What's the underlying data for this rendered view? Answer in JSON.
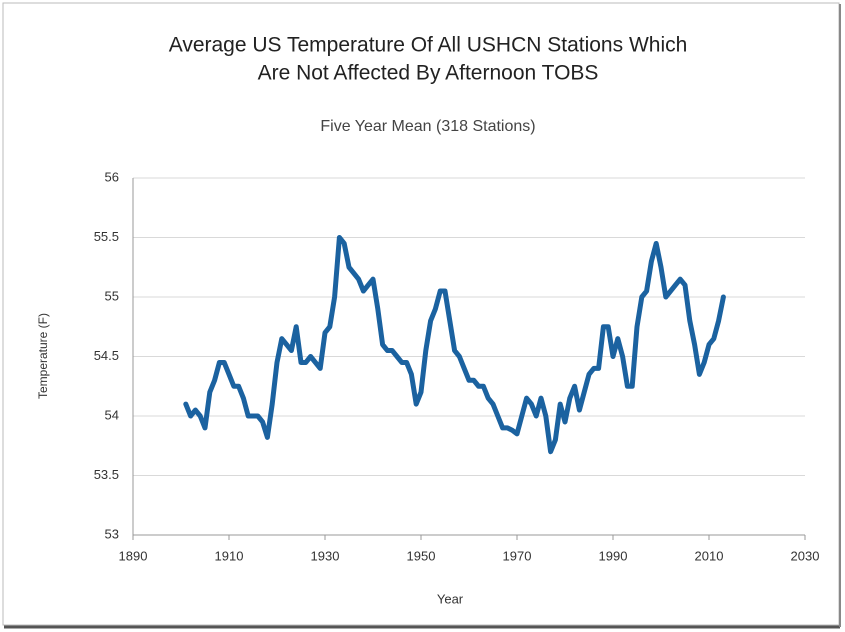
{
  "chart_data": {
    "type": "line",
    "title": [
      "Average US Temperature Of All USHCN Stations Which",
      "Are Not Affected By Afternoon TOBS"
    ],
    "subtitle": "Five Year Mean (318 Stations)",
    "xlabel": "Year",
    "ylabel": "Temperature (F)",
    "x": [
      1901,
      1902,
      1903,
      1904,
      1905,
      1906,
      1907,
      1908,
      1909,
      1910,
      1911,
      1912,
      1913,
      1914,
      1915,
      1916,
      1917,
      1918,
      1919,
      1920,
      1921,
      1922,
      1923,
      1924,
      1925,
      1926,
      1927,
      1928,
      1929,
      1930,
      1931,
      1932,
      1933,
      1934,
      1935,
      1936,
      1937,
      1938,
      1939,
      1940,
      1941,
      1942,
      1943,
      1944,
      1945,
      1946,
      1947,
      1948,
      1949,
      1950,
      1951,
      1952,
      1953,
      1954,
      1955,
      1956,
      1957,
      1958,
      1959,
      1960,
      1961,
      1962,
      1963,
      1964,
      1965,
      1966,
      1967,
      1968,
      1969,
      1970,
      1971,
      1972,
      1973,
      1974,
      1975,
      1976,
      1977,
      1978,
      1979,
      1980,
      1981,
      1982,
      1983,
      1984,
      1985,
      1986,
      1987,
      1988,
      1989,
      1990,
      1991,
      1992,
      1993,
      1994,
      1995,
      1996,
      1997,
      1998,
      1999,
      2000,
      2001,
      2002,
      2003,
      2004,
      2005,
      2006,
      2007,
      2008,
      2009,
      2010,
      2011,
      2012,
      2013
    ],
    "series": [
      {
        "name": "Temperature",
        "color": "#1b62a0",
        "values": [
          54.1,
          54.0,
          54.05,
          54.0,
          53.9,
          54.2,
          54.3,
          54.45,
          54.45,
          54.35,
          54.25,
          54.25,
          54.15,
          54.0,
          54.0,
          54.0,
          53.95,
          53.82,
          54.1,
          54.45,
          54.65,
          54.6,
          54.55,
          54.75,
          54.45,
          54.45,
          54.5,
          54.45,
          54.4,
          54.7,
          54.75,
          55.0,
          55.5,
          55.45,
          55.25,
          55.2,
          55.15,
          55.05,
          55.1,
          55.15,
          54.9,
          54.6,
          54.55,
          54.55,
          54.5,
          54.45,
          54.45,
          54.35,
          54.1,
          54.2,
          54.55,
          54.8,
          54.9,
          55.05,
          55.05,
          54.8,
          54.55,
          54.5,
          54.4,
          54.3,
          54.3,
          54.25,
          54.25,
          54.15,
          54.1,
          54.0,
          53.9,
          53.9,
          53.88,
          53.85,
          54.0,
          54.15,
          54.1,
          54.0,
          54.15,
          54.0,
          53.7,
          53.8,
          54.1,
          53.95,
          54.15,
          54.25,
          54.05,
          54.2,
          54.35,
          54.4,
          54.4,
          54.75,
          54.75,
          54.5,
          54.65,
          54.5,
          54.25,
          54.25,
          54.75,
          55.0,
          55.05,
          55.3,
          55.45,
          55.25,
          55.0,
          55.05,
          55.1,
          55.15,
          55.1,
          54.8,
          54.6,
          54.35,
          54.45,
          54.6,
          54.65,
          54.8,
          55.0
        ]
      }
    ],
    "xlim": [
      1890,
      2030
    ],
    "xticks": [
      1890,
      1910,
      1930,
      1950,
      1970,
      1990,
      2010,
      2030
    ],
    "ylim": [
      53,
      56
    ],
    "yticks": [
      53,
      53.5,
      54,
      54.5,
      55,
      55.5,
      56
    ],
    "grid": true
  }
}
